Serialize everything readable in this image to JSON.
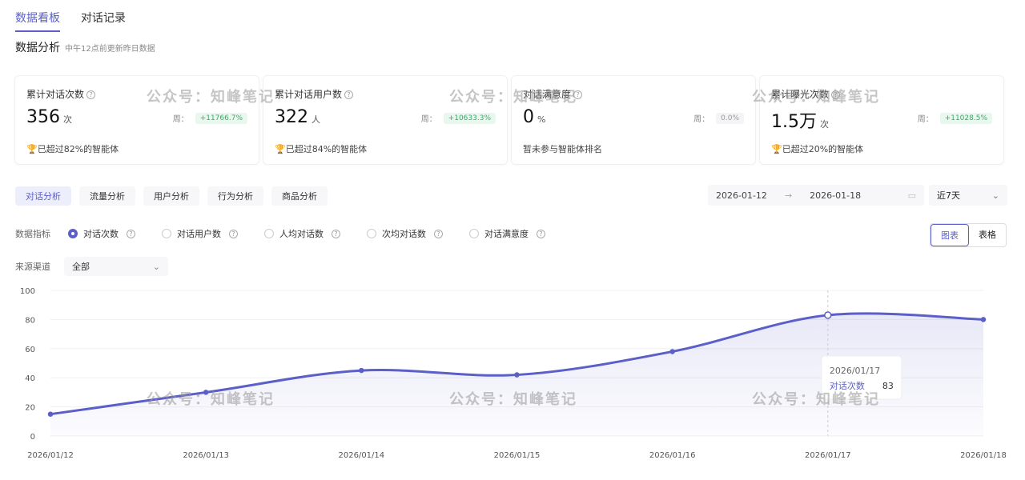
{
  "tabs": [
    {
      "label": "数据看板",
      "active": true
    },
    {
      "label": "对话记录",
      "active": false
    }
  ],
  "section": {
    "title": "数据分析",
    "note": "中午12点前更新昨日数据"
  },
  "cards": [
    {
      "title": "累计对话次数",
      "value": "356",
      "unit": "次",
      "week_label": "周：",
      "week_change": "+11766.7%",
      "footer": "已超过82%的智能体",
      "icon": "trophy-icon"
    },
    {
      "title": "累计对话用户数",
      "value": "322",
      "unit": "人",
      "week_label": "周：",
      "week_change": "+10633.3%",
      "footer": "已超过84%的智能体",
      "icon": "trophy-icon"
    },
    {
      "title": "对话满意度",
      "value": "0",
      "unit": "%",
      "week_label": "周：",
      "week_change": "0.0%",
      "footer": "暂未参与智能体排名"
    },
    {
      "title": "累计曝光次数",
      "value": "1.5万",
      "unit": "次",
      "week_label": "周：",
      "week_change": "+11028.5%",
      "footer": "已超过20%的智能体",
      "icon": "trophy-icon"
    }
  ],
  "subtabs": [
    {
      "label": "对话分析",
      "active": true
    },
    {
      "label": "流量分析"
    },
    {
      "label": "用户分析"
    },
    {
      "label": "行为分析"
    },
    {
      "label": "商品分析"
    }
  ],
  "date_range": {
    "start": "2026-01-12",
    "sep": "→",
    "end": "2026-01-18",
    "preset": "近7天"
  },
  "metrics": {
    "label": "数据指标",
    "options": [
      {
        "label": "对话次数",
        "selected": true
      },
      {
        "label": "对话用户数"
      },
      {
        "label": "人均对话数"
      },
      {
        "label": "次均对话数"
      },
      {
        "label": "对话满意度"
      }
    ]
  },
  "view_toggle": {
    "chart": "图表",
    "table": "表格",
    "selected": "图表"
  },
  "source": {
    "label": "来源渠道",
    "value": "全部"
  },
  "watermark": "公众号：知峰笔记",
  "colors": {
    "accent": "#5b5fc7",
    "positive": "#3ca86a"
  },
  "chart_data": {
    "type": "area",
    "x": [
      "2026/01/12",
      "2026/01/13",
      "2026/01/14",
      "2026/01/15",
      "2026/01/16",
      "2026/01/17",
      "2026/01/18"
    ],
    "series": [
      {
        "name": "对话次数",
        "values": [
          15,
          30,
          45,
          42,
          58,
          83,
          80
        ]
      }
    ],
    "ylim": [
      0,
      100
    ],
    "yticks": [
      "0",
      "20",
      "40",
      "60",
      "80",
      "100"
    ],
    "grid": true,
    "tooltip": {
      "date": "2026/01/17",
      "label": "对话次数",
      "value": "83"
    }
  }
}
